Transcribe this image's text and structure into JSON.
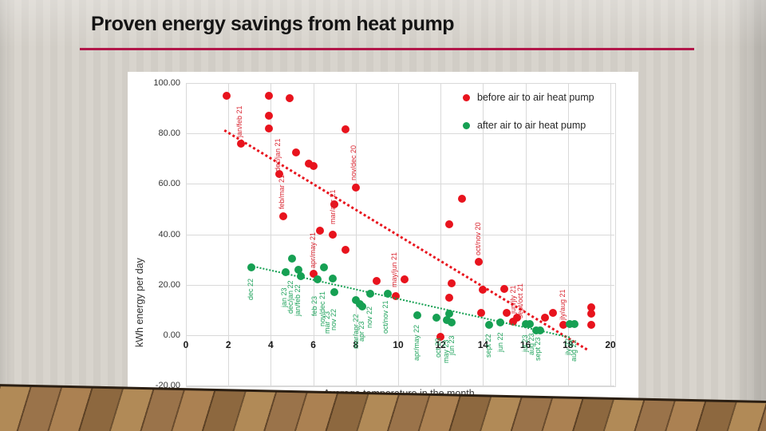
{
  "slide": {
    "title": "Proven energy savings from heat pump",
    "underline_color": "#b11649",
    "wall_color": "#d5d1ca",
    "floor_wood_color": "#a57a4b"
  },
  "chart_data": {
    "type": "scatter",
    "title": "",
    "xlabel": "Average temperature in the month",
    "ylabel": "kWh energy per day",
    "xlim": [
      0,
      20
    ],
    "ylim": [
      -20,
      100
    ],
    "grid": true,
    "legend_position": "top-right-inside",
    "x_ticks": [
      {
        "value": 0,
        "label": "0"
      },
      {
        "value": 2,
        "label": "2"
      },
      {
        "value": 4,
        "label": "4"
      },
      {
        "value": 6,
        "label": "6"
      },
      {
        "value": 8,
        "label": "8"
      },
      {
        "value": 10,
        "label": "10"
      },
      {
        "value": 12,
        "label": "12"
      },
      {
        "value": 14,
        "label": "14"
      },
      {
        "value": 16,
        "label": "16"
      },
      {
        "value": 18,
        "label": "18"
      },
      {
        "value": 20,
        "label": "20"
      }
    ],
    "y_ticks": [
      {
        "value": 100,
        "label": "100.00"
      },
      {
        "value": 80,
        "label": "80.00"
      },
      {
        "value": 60,
        "label": "60.00"
      },
      {
        "value": 40,
        "label": "40.00"
      },
      {
        "value": 20,
        "label": "20.00"
      },
      {
        "value": 0,
        "label": "0.00"
      },
      {
        "value": -20,
        "label": "-20.00"
      }
    ],
    "series": [
      {
        "name": "before air to air heat pump",
        "color": "#e8131d",
        "label_color": "#d9232e",
        "trend": {
          "x1": 1.85,
          "y1": 81.5,
          "x2": 18.95,
          "y2": -5.5,
          "thickness": 3
        },
        "points": [
          [
            1.9,
            95
          ],
          [
            3.9,
            95
          ],
          [
            4.9,
            94
          ],
          [
            3.9,
            87
          ],
          [
            3.9,
            82
          ],
          [
            2.6,
            76
          ],
          [
            5.2,
            72.5
          ],
          [
            5.8,
            68
          ],
          [
            6.0,
            67
          ],
          [
            4.4,
            64
          ],
          [
            4.6,
            47
          ],
          [
            7.5,
            81.5
          ],
          [
            8.0,
            58.5
          ],
          [
            7.0,
            52
          ],
          [
            6.3,
            41.5
          ],
          [
            6.9,
            40
          ],
          [
            7.5,
            34
          ],
          [
            6.0,
            24.5
          ],
          [
            13.0,
            54
          ],
          [
            12.4,
            44
          ],
          [
            13.8,
            29
          ],
          [
            9.0,
            21.5
          ],
          [
            10.3,
            22
          ],
          [
            9.9,
            15.5
          ],
          [
            12.5,
            20.5
          ],
          [
            12.4,
            15
          ],
          [
            14.0,
            18
          ],
          [
            15.0,
            18.5
          ],
          [
            13.9,
            9
          ],
          [
            15.1,
            9
          ],
          [
            15.4,
            5.5
          ],
          [
            15.6,
            7
          ],
          [
            16.9,
            7
          ],
          [
            17.3,
            9
          ],
          [
            17.8,
            4
          ],
          [
            12.0,
            -0.5
          ],
          [
            19.1,
            11
          ],
          [
            19.1,
            8.5
          ],
          [
            19.1,
            4
          ]
        ],
        "point_labels": [
          {
            "text": "jan/feb 21",
            "x": 2.55,
            "y": 78.5
          },
          {
            "text": "dec/jan 21",
            "x": 4.35,
            "y": 65
          },
          {
            "text": "feb/mar 21",
            "x": 4.55,
            "y": 50
          },
          {
            "text": "nov/dec 20",
            "x": 7.95,
            "y": 61.5
          },
          {
            "text": "mar/apr 21",
            "x": 6.95,
            "y": 44
          },
          {
            "text": "apr/may 21",
            "x": 6.0,
            "y": 26.5
          },
          {
            "text": "oct/nov 20",
            "x": 13.8,
            "y": 31.5
          },
          {
            "text": "may/jun 21",
            "x": 9.85,
            "y": 19
          },
          {
            "text": "jun/jly 21",
            "x": 15.45,
            "y": 8.5
          },
          {
            "text": "sept/oct 21",
            "x": 15.8,
            "y": 6.5
          },
          {
            "text": "jly/aug 21",
            "x": 17.8,
            "y": 6
          }
        ]
      },
      {
        "name": "after air to air heat pump",
        "color": "#16a053",
        "label_color": "#1ea25b",
        "trend": {
          "x1": 3.05,
          "y1": 27.8,
          "x2": 18.1,
          "y2": -0.6,
          "thickness": 2.5
        },
        "points": [
          [
            5.0,
            30.5
          ],
          [
            3.1,
            27
          ],
          [
            4.7,
            25
          ],
          [
            5.3,
            26
          ],
          [
            5.4,
            23.5
          ],
          [
            6.5,
            27
          ],
          [
            6.2,
            22
          ],
          [
            6.9,
            22.5
          ],
          [
            7.0,
            17
          ],
          [
            8.0,
            14
          ],
          [
            8.2,
            12.5
          ],
          [
            8.3,
            11.5
          ],
          [
            8.7,
            16.5
          ],
          [
            9.5,
            16.5
          ],
          [
            10.9,
            8
          ],
          [
            11.8,
            7
          ],
          [
            12.3,
            6
          ],
          [
            12.4,
            8.5
          ],
          [
            12.5,
            5
          ],
          [
            14.3,
            4
          ],
          [
            14.8,
            5
          ],
          [
            16.0,
            4.5
          ],
          [
            16.2,
            4.5
          ],
          [
            16.5,
            2
          ],
          [
            16.7,
            2
          ],
          [
            18.1,
            4.5
          ],
          [
            18.3,
            4.5
          ]
        ],
        "point_labels": [
          {
            "text": "dec 22",
            "x": 3.1,
            "y": 14
          },
          {
            "text": "jan 23",
            "x": 4.65,
            "y": 11
          },
          {
            "text": "dec/jan 22",
            "x": 4.95,
            "y": 8.5
          },
          {
            "text": "jan/feb 22",
            "x": 5.3,
            "y": 7.5
          },
          {
            "text": "feb 23",
            "x": 6.1,
            "y": 7.5
          },
          {
            "text": "nov/dec 21",
            "x": 6.45,
            "y": 3.5
          },
          {
            "text": "mar 23",
            "x": 6.7,
            "y": 0.5
          },
          {
            "text": "nov 22",
            "x": 7.0,
            "y": 2
          },
          {
            "text": "mar/apr 22",
            "x": 8.05,
            "y": -5.5
          },
          {
            "text": "apr 23",
            "x": 8.3,
            "y": -2.5
          },
          {
            "text": "nov 22",
            "x": 8.7,
            "y": 3
          },
          {
            "text": "oct/nov 21",
            "x": 9.45,
            "y": 0.5
          },
          {
            "text": "apr/may 22",
            "x": 10.9,
            "y": -10
          },
          {
            "text": "oct 23",
            "x": 11.9,
            "y": -9
          },
          {
            "text": "may 23",
            "x": 12.3,
            "y": -11
          },
          {
            "text": "jun 23",
            "x": 12.55,
            "y": -8
          },
          {
            "text": "sept 22",
            "x": 14.3,
            "y": -9
          },
          {
            "text": "jun 22",
            "x": 14.85,
            "y": -6.5
          },
          {
            "text": "jul 23",
            "x": 16.0,
            "y": -6.5
          },
          {
            "text": "aug 23",
            "x": 16.3,
            "y": -8
          },
          {
            "text": "sept 23",
            "x": 16.6,
            "y": -10
          },
          {
            "text": "jly 22",
            "x": 18.05,
            "y": -8
          },
          {
            "text": "aug 22",
            "x": 18.3,
            "y": -10.5
          }
        ]
      }
    ],
    "legend": [
      {
        "label": "before air to air heat pump",
        "color": "#e8131d"
      },
      {
        "label": "after air to air heat pump",
        "color": "#16a053"
      }
    ]
  }
}
